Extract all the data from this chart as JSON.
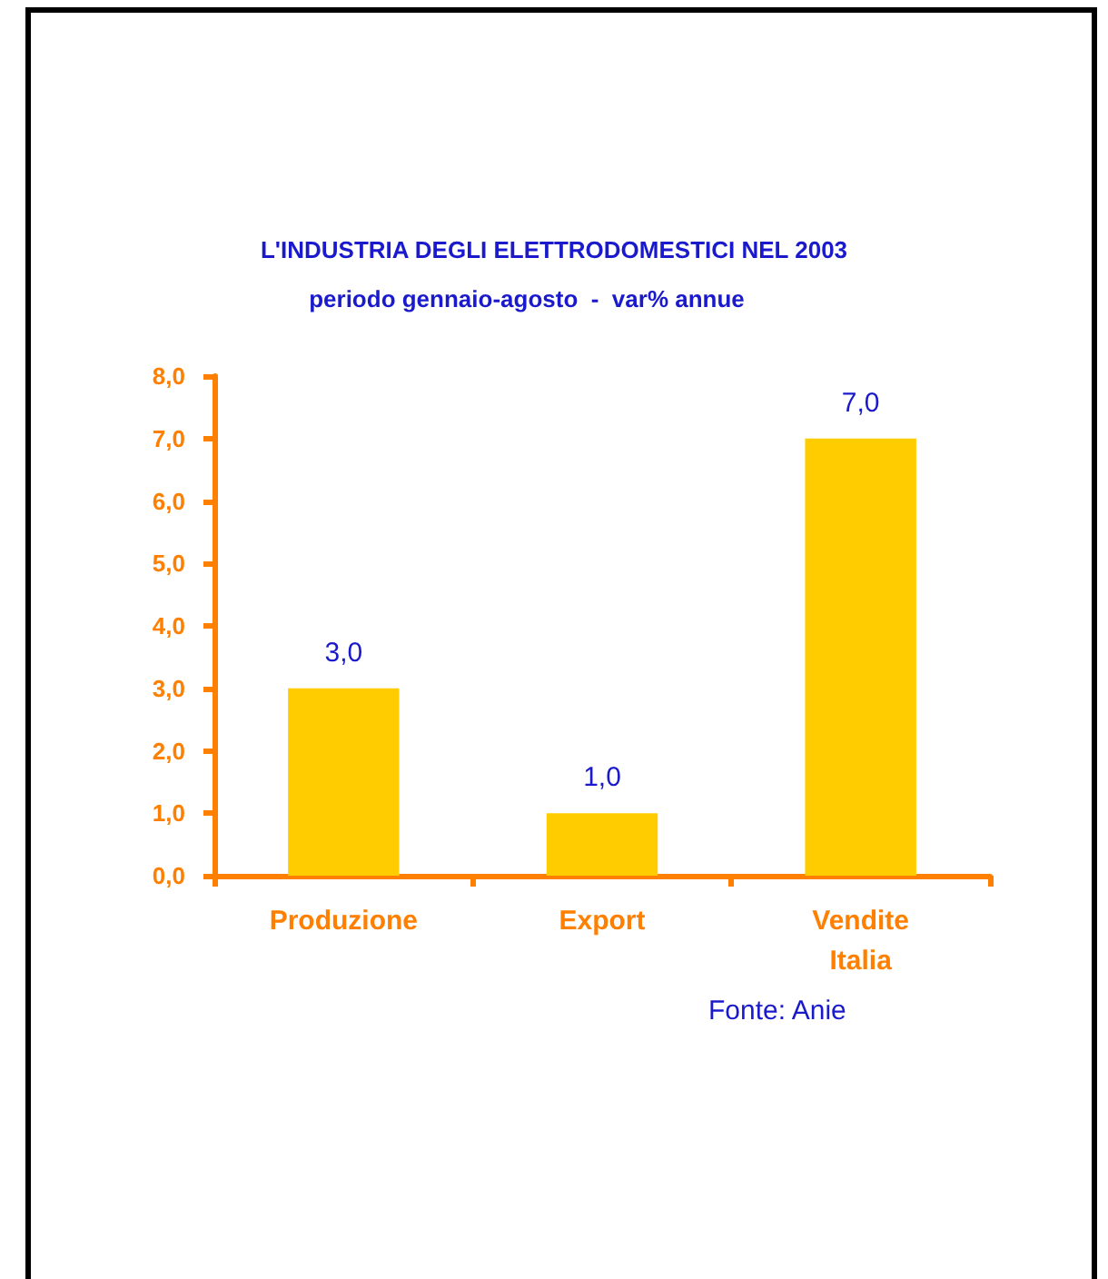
{
  "chart_data": {
    "type": "bar",
    "title": "L'INDUSTRIA DEGLI ELETTRODOMESTICI NEL 2003",
    "subtitle": "periodo gennaio-agosto  -  var% annue",
    "categories": [
      "Produzione",
      "Export",
      "Vendite Italia"
    ],
    "values": [
      3.0,
      1.0,
      7.0
    ],
    "color": "#ffcc00",
    "value_labels": [
      "3,0",
      "1,0",
      "7,0"
    ],
    "ylim": [
      0,
      8
    ],
    "yticks": [
      {
        "value": 0,
        "label": "0,0"
      },
      {
        "value": 1,
        "label": "1,0"
      },
      {
        "value": 2,
        "label": "2,0"
      },
      {
        "value": 3,
        "label": "3,0"
      },
      {
        "value": 4,
        "label": "4,0"
      },
      {
        "value": 5,
        "label": "5,0"
      },
      {
        "value": 6,
        "label": "6,0"
      },
      {
        "value": 7,
        "label": "7,0"
      },
      {
        "value": 8,
        "label": "8,0"
      }
    ],
    "annotations": [
      "Fonte: Anie"
    ],
    "grid": false
  }
}
